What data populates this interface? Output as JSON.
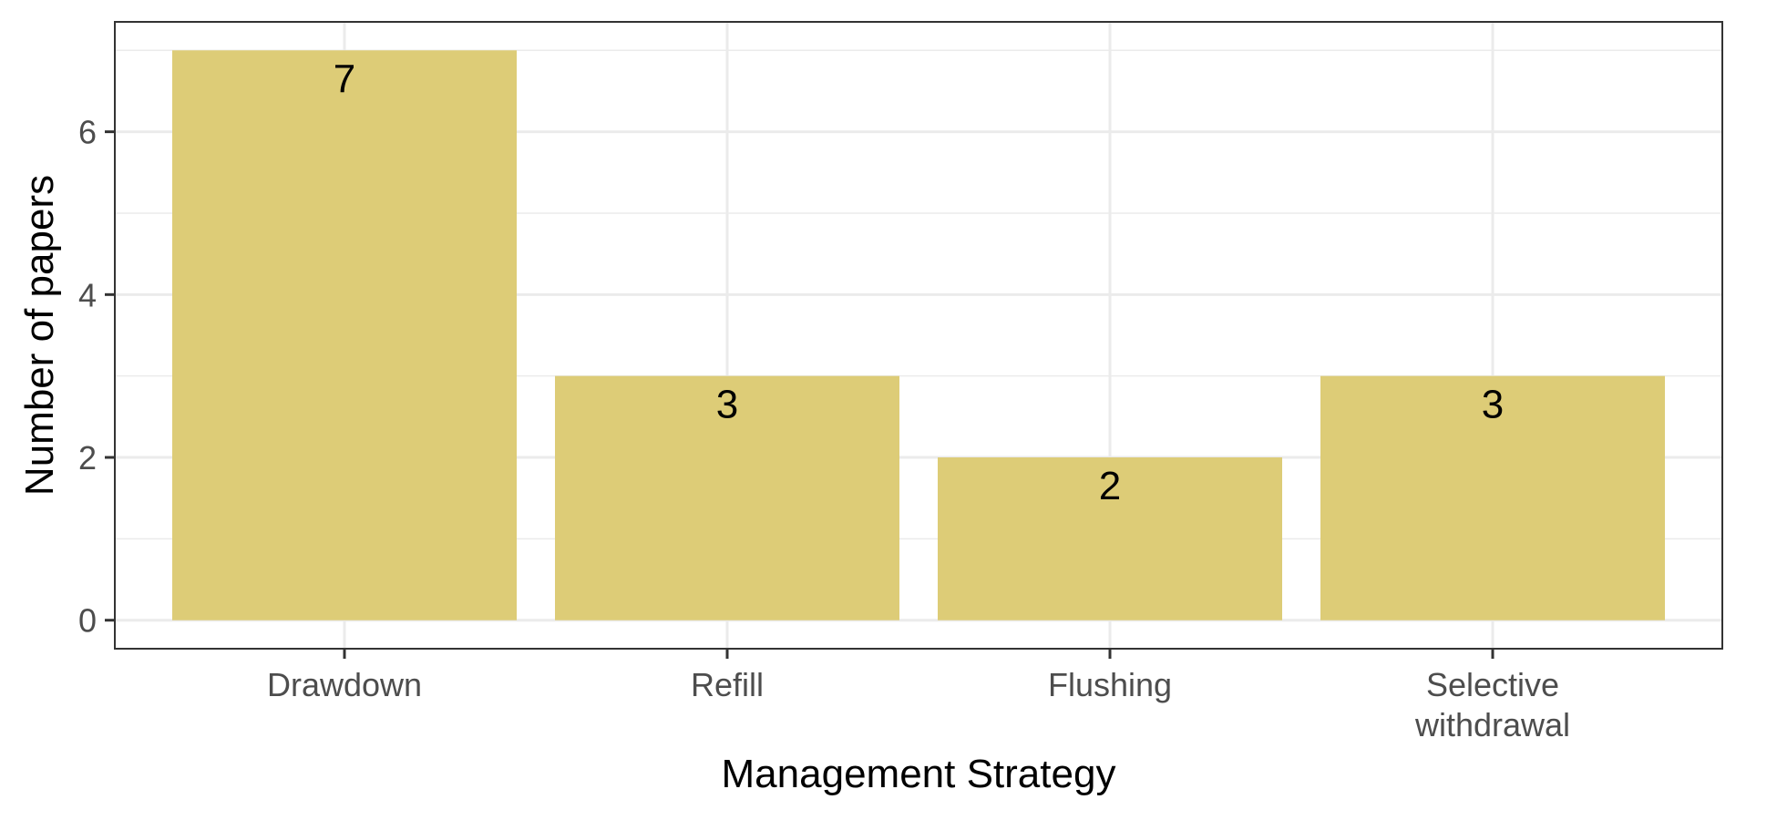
{
  "chart_data": {
    "type": "bar",
    "categories": [
      [
        "Drawdown"
      ],
      [
        "Refill"
      ],
      [
        "Flushing"
      ],
      [
        "Selective",
        "withdrawal"
      ]
    ],
    "values": [
      7,
      3,
      2,
      3
    ],
    "data_labels": [
      "7",
      "3",
      "2",
      "3"
    ],
    "xlabel": "Management Strategy",
    "ylabel": "Number of papers",
    "ylim": [
      -0.35,
      7.35
    ],
    "yticks": [
      0,
      2,
      4,
      6
    ],
    "grid": true,
    "legend": "none",
    "bar_color": "#DDCC77",
    "grid_color": "#EBEBEB",
    "panel_border_color": "#333333"
  }
}
